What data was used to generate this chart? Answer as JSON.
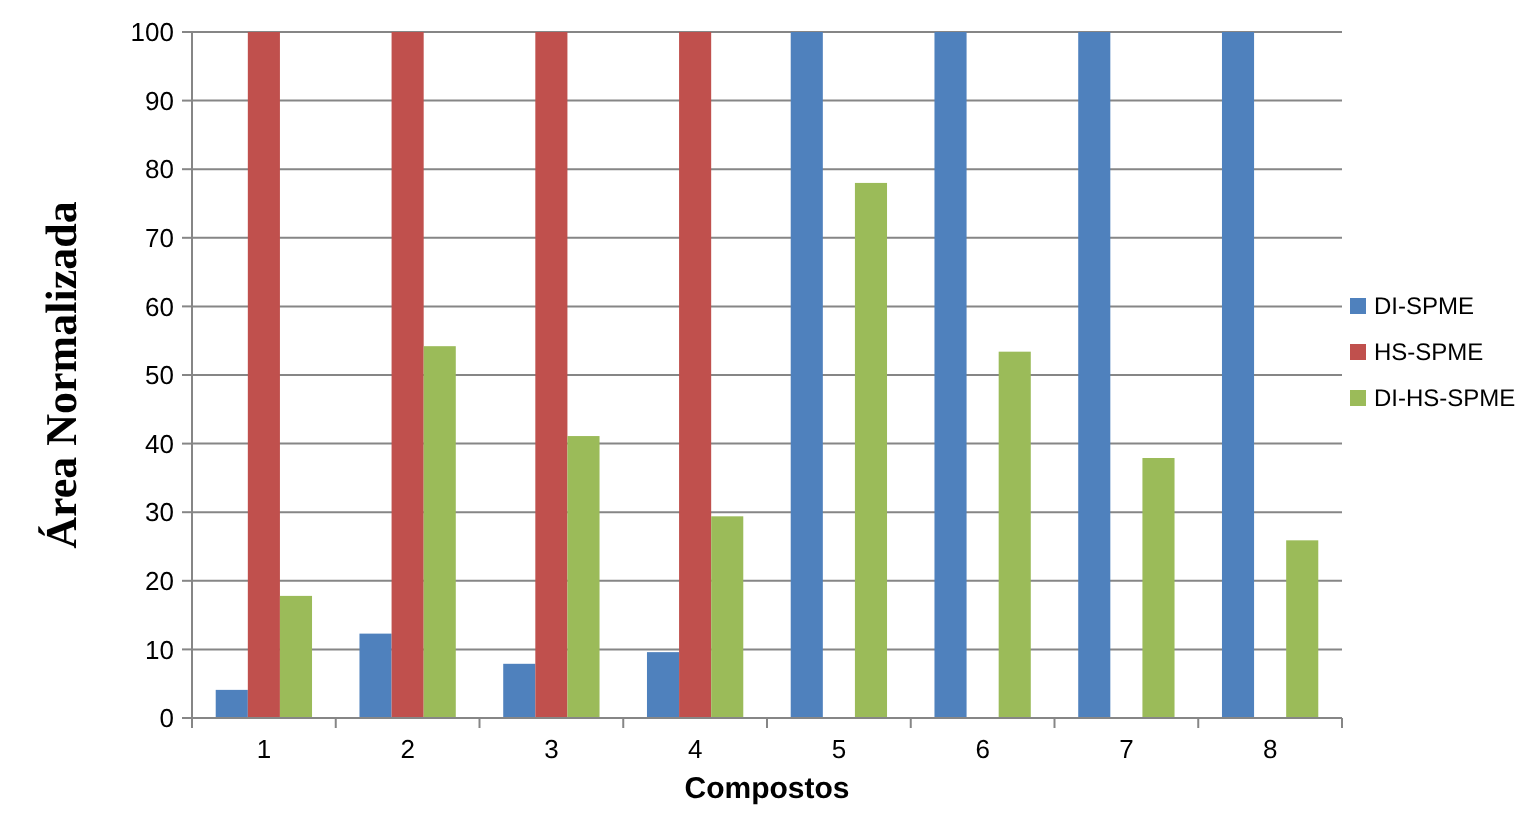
{
  "chart_data": {
    "type": "bar",
    "xlabel": "Compostos",
    "ylabel": "Área Normalizada",
    "categories": [
      "1",
      "2",
      "3",
      "4",
      "5",
      "6",
      "7",
      "8"
    ],
    "series": [
      {
        "name": "DI-SPME",
        "color": "#4f81bd",
        "values": [
          4.1,
          12.3,
          7.9,
          9.6,
          100,
          100,
          100,
          100
        ]
      },
      {
        "name": "HS-SPME",
        "color": "#c0504d",
        "values": [
          100,
          100,
          100,
          100,
          0,
          0,
          0,
          0
        ]
      },
      {
        "name": "DI-HS-SPME",
        "color": "#9bbb59",
        "values": [
          17.8,
          54.2,
          41.1,
          29.4,
          78,
          53.4,
          37.9,
          25.9
        ]
      }
    ],
    "ylim": [
      0,
      100
    ],
    "yticks": [
      0,
      10,
      20,
      30,
      40,
      50,
      60,
      70,
      80,
      90,
      100
    ],
    "grid": "y",
    "legend": "right"
  }
}
